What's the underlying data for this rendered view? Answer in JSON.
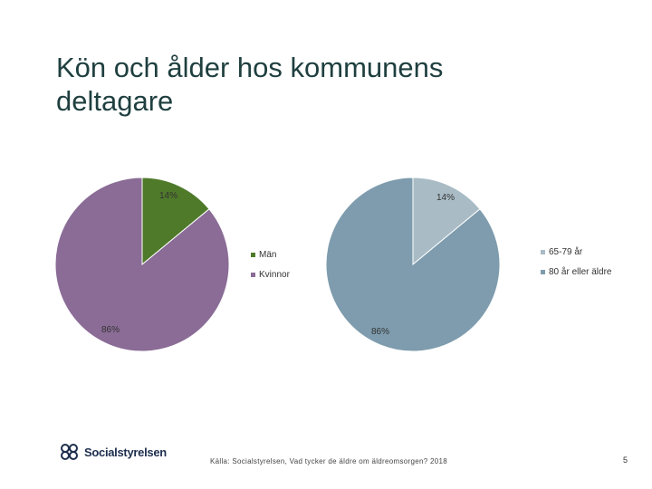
{
  "slide": {
    "title": "Kön och ålder hos kommunens deltagare",
    "logo_text": "Socialstyrelsen",
    "source": "Källa: Socialstyrelsen, Vad tycker de äldre om äldreomsorgen? 2018",
    "page_number": "5"
  },
  "chart_data": [
    {
      "type": "pie",
      "categories": [
        "Män",
        "Kvinnor"
      ],
      "values": [
        14,
        86
      ],
      "value_labels": [
        "14%",
        "86%"
      ],
      "colors": [
        "#4f7a2a",
        "#8a6c96"
      ],
      "legend": "right"
    },
    {
      "type": "pie",
      "categories": [
        "65-79 år",
        "80 år eller äldre"
      ],
      "values": [
        14,
        86
      ],
      "value_labels": [
        "14%",
        "86%"
      ],
      "colors": [
        "#a9bcc6",
        "#7e9cad"
      ],
      "legend": "right"
    }
  ]
}
